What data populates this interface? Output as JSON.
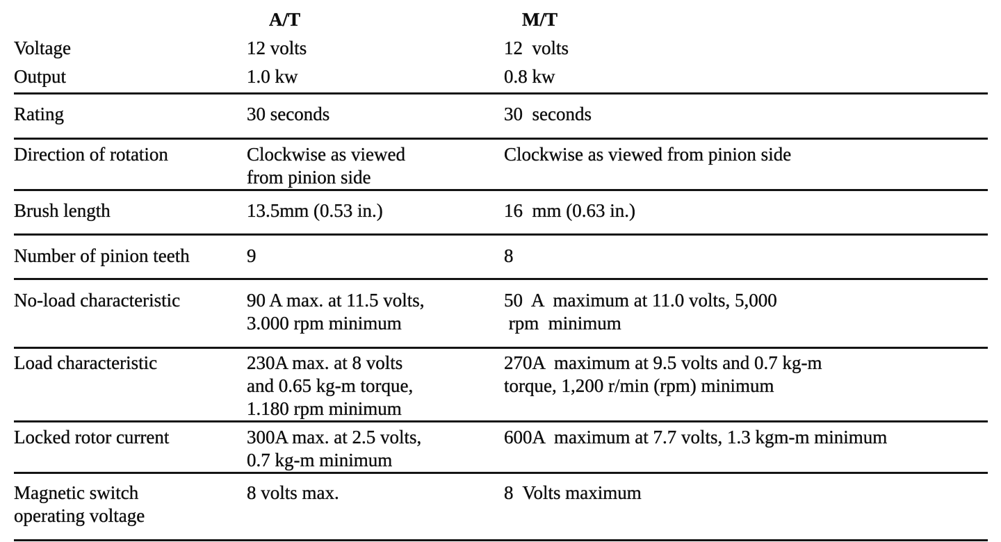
{
  "document": {
    "columns": {
      "at_header": "A/T",
      "mt_header": "M/T"
    },
    "intro": [
      {
        "label": "Voltage",
        "at": "12 volts",
        "mt": "12  volts"
      },
      {
        "label": "Output",
        "at": "1.0 kw",
        "mt": "0.8 kw"
      }
    ],
    "rows": [
      {
        "label": "Rating",
        "at": "30 seconds",
        "mt": "30  seconds"
      },
      {
        "label": "Direction of rotation",
        "at": "Clockwise as viewed\nfrom pinion side",
        "mt": "Clockwise as viewed from pinion side"
      },
      {
        "label": "Brush length",
        "at": "13.5mm (0.53 in.)",
        "mt": "16  mm (0.63 in.)"
      },
      {
        "label": "Number of pinion teeth",
        "at": "9",
        "mt": "8"
      },
      {
        "label": "No-load characteristic",
        "at": "90 A max. at 11.5 volts,\n3.000 rpm minimum",
        "mt": "50  A  maximum at 11.0 volts, 5,000\n rpm  minimum"
      },
      {
        "label": "Load characteristic",
        "at": "230A max. at 8 volts\nand 0.65 kg-m torque,\n1.180 rpm minimum",
        "mt": "270A  maximum at 9.5 volts and 0.7 kg-m\ntorque, 1,200 r/min (rpm) minimum"
      },
      {
        "label": "Locked rotor current",
        "at": "300A max. at 2.5 volts,\n0.7 kg-m minimum",
        "mt": "600A  maximum at 7.7 volts, 1.3 kgm-m minimum"
      },
      {
        "label": "Magnetic switch\noperating voltage",
        "at": "8 volts max.",
        "mt": "8  Volts maximum"
      }
    ]
  }
}
